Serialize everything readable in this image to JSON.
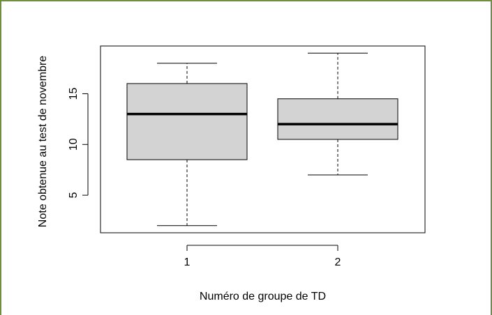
{
  "chart_data": {
    "type": "boxplot",
    "title": "",
    "xlabel": "Numéro de groupe de TD",
    "ylabel": "Note obtenue au test de novembre",
    "categories": [
      "1",
      "2"
    ],
    "yticks": [
      "5",
      "10",
      "15"
    ],
    "ylim": [
      1.3,
      19.7
    ],
    "boxes": [
      {
        "category": "1",
        "min": 2,
        "q1": 8.5,
        "median": 13,
        "q3": 16,
        "max": 18
      },
      {
        "category": "2",
        "min": 7,
        "q1": 10.5,
        "median": 12,
        "q3": 14.5,
        "max": 19
      }
    ],
    "grid": false,
    "box_fill": "#d3d3d3",
    "frame_color": "#6f8f3f"
  }
}
